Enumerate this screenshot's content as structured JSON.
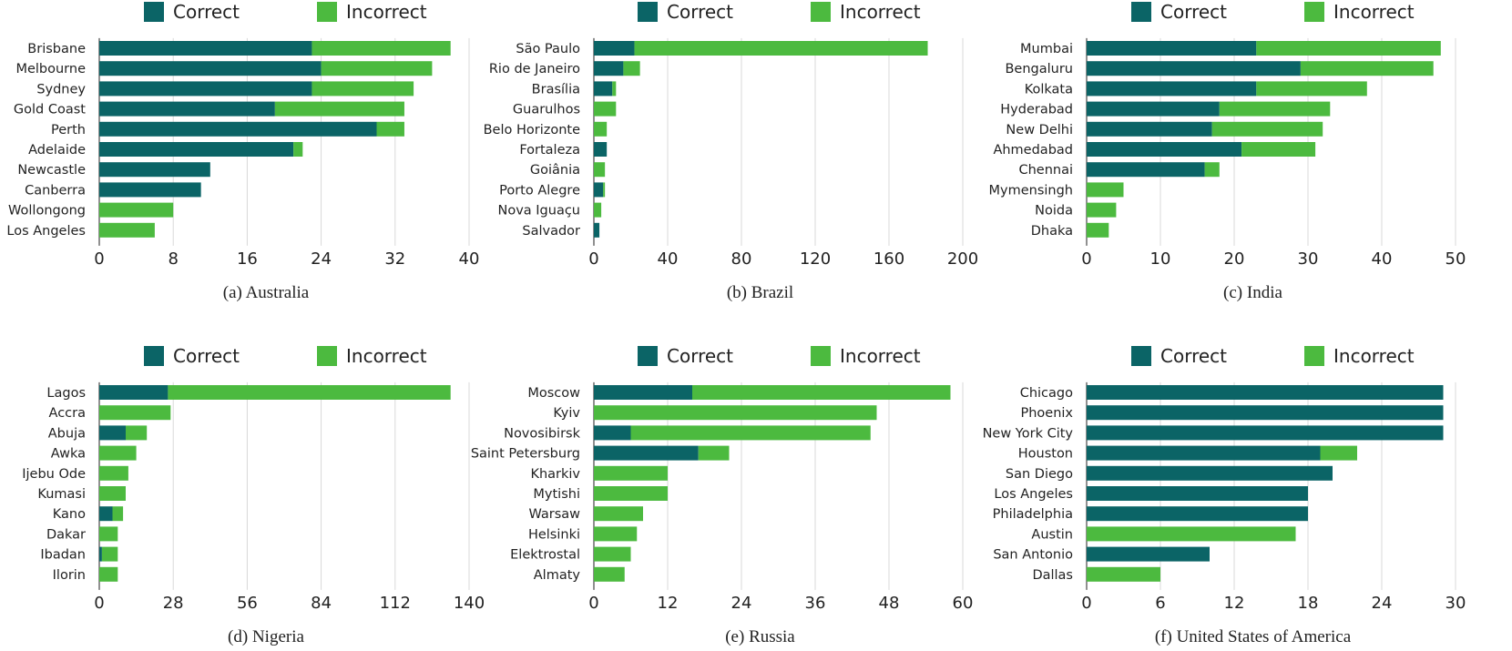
{
  "colors": {
    "correct": "#0b6466",
    "incorrect": "#4cba3f",
    "grid": "#d9d9d9"
  },
  "chart_data": [
    {
      "type": "bar",
      "orientation": "horizontal",
      "stacked": true,
      "title": "(a) Australia",
      "legend": [
        "Correct",
        "Incorrect"
      ],
      "categories": [
        "Brisbane",
        "Melbourne",
        "Sydney",
        "Gold Coast",
        "Perth",
        "Adelaide",
        "Newcastle",
        "Canberra",
        "Wollongong",
        "Los Angeles"
      ],
      "series": [
        {
          "name": "Correct",
          "values": [
            23,
            24,
            23,
            19,
            30,
            21,
            12,
            11,
            0,
            0
          ]
        },
        {
          "name": "Incorrect",
          "values": [
            15,
            12,
            11,
            14,
            3,
            1,
            0,
            0,
            8,
            6
          ]
        }
      ],
      "xlim": [
        0,
        40
      ],
      "xticks": [
        0,
        8,
        16,
        24,
        32,
        40
      ],
      "grid": true
    },
    {
      "type": "bar",
      "orientation": "horizontal",
      "stacked": true,
      "title": "(b) Brazil",
      "legend": [
        "Correct",
        "Incorrect"
      ],
      "categories": [
        "São Paulo",
        "Rio de Janeiro",
        "Brasília",
        "Guarulhos",
        "Belo Horizonte",
        "Fortaleza",
        "Goiânia",
        "Porto Alegre",
        "Nova Iguaçu",
        "Salvador"
      ],
      "series": [
        {
          "name": "Correct",
          "values": [
            22,
            16,
            10,
            0,
            0,
            7,
            0,
            5,
            0,
            3
          ]
        },
        {
          "name": "Incorrect",
          "values": [
            159,
            9,
            2,
            12,
            7,
            0,
            6,
            1,
            4,
            0
          ]
        }
      ],
      "xlim": [
        0,
        200
      ],
      "xticks": [
        0,
        40,
        80,
        120,
        160,
        200
      ],
      "grid": true
    },
    {
      "type": "bar",
      "orientation": "horizontal",
      "stacked": true,
      "title": "(c) India",
      "legend": [
        "Correct",
        "Incorrect"
      ],
      "categories": [
        "Mumbai",
        "Bengaluru",
        "Kolkata",
        "Hyderabad",
        "New Delhi",
        "Ahmedabad",
        "Chennai",
        "Mymensingh",
        "Noida",
        "Dhaka"
      ],
      "series": [
        {
          "name": "Correct",
          "values": [
            23,
            29,
            23,
            18,
            17,
            21,
            16,
            0,
            0,
            0
          ]
        },
        {
          "name": "Incorrect",
          "values": [
            25,
            18,
            15,
            15,
            15,
            10,
            2,
            5,
            4,
            3
          ]
        }
      ],
      "xlim": [
        0,
        50
      ],
      "xticks": [
        0,
        10,
        20,
        30,
        40,
        50
      ],
      "grid": true
    },
    {
      "type": "bar",
      "orientation": "horizontal",
      "stacked": true,
      "title": "(d) Nigeria",
      "legend": [
        "Correct",
        "Incorrect"
      ],
      "categories": [
        "Lagos",
        "Accra",
        "Abuja",
        "Awka",
        "Ijebu Ode",
        "Kumasi",
        "Kano",
        "Dakar",
        "Ibadan",
        "Ilorin"
      ],
      "series": [
        {
          "name": "Correct",
          "values": [
            26,
            0,
            10,
            0,
            0,
            0,
            5,
            0,
            1,
            0
          ]
        },
        {
          "name": "Incorrect",
          "values": [
            107,
            27,
            8,
            14,
            11,
            10,
            4,
            7,
            6,
            7
          ]
        }
      ],
      "xlim": [
        0,
        140
      ],
      "xticks": [
        0,
        28,
        56,
        84,
        112,
        140
      ],
      "grid": true
    },
    {
      "type": "bar",
      "orientation": "horizontal",
      "stacked": true,
      "title": "(e) Russia",
      "legend": [
        "Correct",
        "Incorrect"
      ],
      "categories": [
        "Moscow",
        "Kyiv",
        "Novosibirsk",
        "Saint Petersburg",
        "Kharkiv",
        "Mytishi",
        "Warsaw",
        "Helsinki",
        "Elektrostal",
        "Almaty"
      ],
      "series": [
        {
          "name": "Correct",
          "values": [
            16,
            0,
            6,
            17,
            0,
            0,
            0,
            0,
            0,
            0
          ]
        },
        {
          "name": "Incorrect",
          "values": [
            42,
            46,
            39,
            5,
            12,
            12,
            8,
            7,
            6,
            5
          ]
        }
      ],
      "xlim": [
        0,
        60
      ],
      "xticks": [
        0,
        12,
        24,
        36,
        48,
        60
      ],
      "grid": true
    },
    {
      "type": "bar",
      "orientation": "horizontal",
      "stacked": true,
      "title": "(f) United States of America",
      "legend": [
        "Correct",
        "Incorrect"
      ],
      "categories": [
        "Chicago",
        "Phoenix",
        "New York City",
        "Houston",
        "San Diego",
        "Los Angeles",
        "Philadelphia",
        "Austin",
        "San Antonio",
        "Dallas"
      ],
      "series": [
        {
          "name": "Correct",
          "values": [
            29,
            29,
            29,
            19,
            20,
            18,
            18,
            0,
            10,
            0
          ]
        },
        {
          "name": "Incorrect",
          "values": [
            0,
            0,
            0,
            3,
            0,
            0,
            0,
            17,
            0,
            6
          ]
        }
      ],
      "xlim": [
        0,
        30
      ],
      "xticks": [
        0,
        6,
        12,
        18,
        24,
        30
      ],
      "grid": true
    }
  ]
}
